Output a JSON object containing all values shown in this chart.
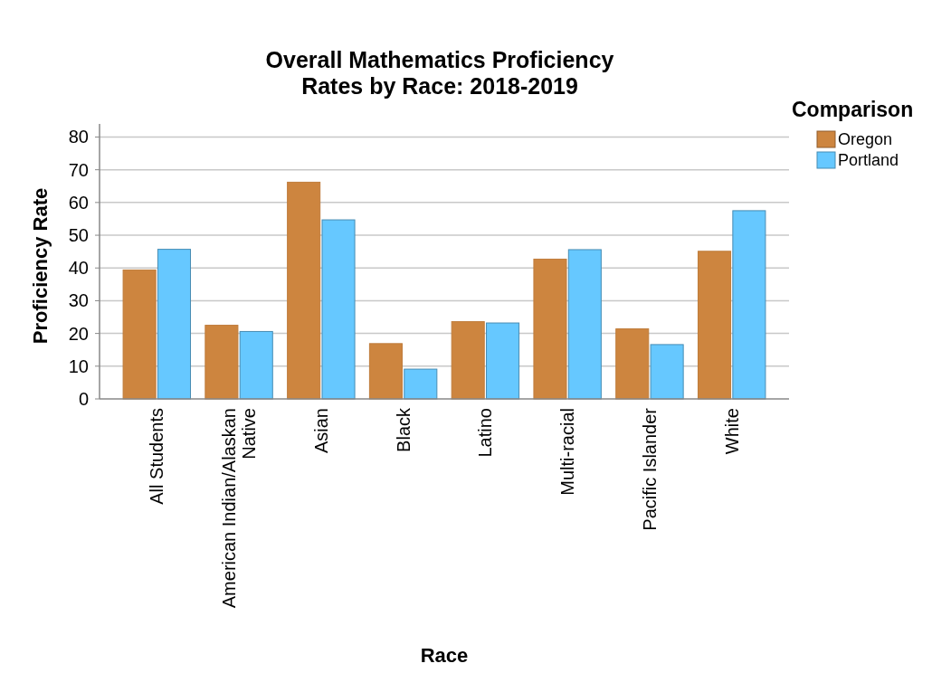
{
  "chart_data": {
    "type": "bar",
    "title": "Overall Mathematics Proficiency\nRates by Race: 2018-2019",
    "xlabel": "Race",
    "ylabel": "Proficiency Rate",
    "legend_title": "Comparison",
    "categories": [
      "All Students",
      "American Indian/Alaskan Native",
      "Asian",
      "Black",
      "Latino",
      "Multi-racial",
      "Pacific Islander",
      "White"
    ],
    "series": [
      {
        "name": "Oregon",
        "color": "#cd853f",
        "values": [
          39.4,
          22.5,
          66.2,
          16.9,
          23.6,
          42.7,
          21.4,
          45.1
        ]
      },
      {
        "name": "Portland",
        "color": "#66c8ff",
        "values": [
          45.7,
          20.6,
          54.7,
          9.1,
          23.2,
          45.6,
          16.6,
          57.5
        ]
      }
    ],
    "ylim": [
      0,
      84
    ],
    "yticks": [
      0,
      10,
      20,
      30,
      40,
      50,
      60,
      70,
      80
    ],
    "grid": "y",
    "legend": "top right"
  }
}
